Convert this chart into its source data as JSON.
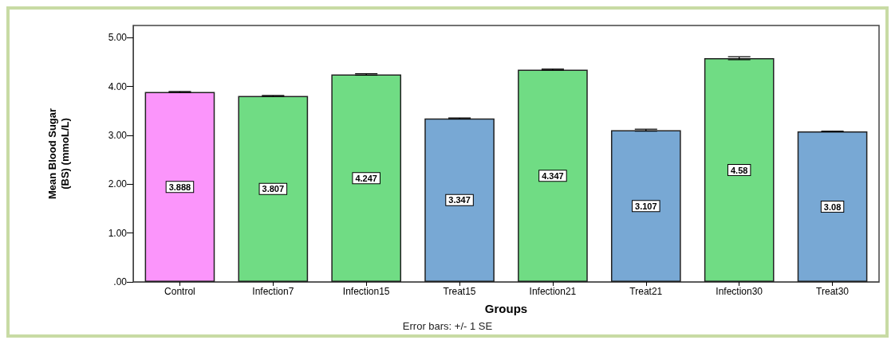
{
  "chart_data": {
    "type": "bar",
    "xlabel": "Groups",
    "ylabel": "Mean Blood Sugar\n(BS) (mmoL/L)",
    "categories": [
      "Control",
      "Infection7",
      "Infection15",
      "Treat15",
      "Infection21",
      "Treat21",
      "Infection30",
      "Treat30"
    ],
    "values": [
      3.888,
      3.807,
      4.247,
      3.347,
      4.347,
      3.107,
      4.58,
      3.08
    ],
    "colors": [
      "#fb95fb",
      "#70dc84",
      "#70dc84",
      "#78a8d4",
      "#70dc84",
      "#78a8d4",
      "#70dc84",
      "#78a8d4"
    ],
    "errors": [
      0.01,
      0.01,
      0.015,
      0.01,
      0.01,
      0.02,
      0.03,
      0.005
    ],
    "ylim": [
      0,
      5.25
    ],
    "yticks": [
      {
        "value": 0,
        "label": ".00"
      },
      {
        "value": 1,
        "label": "1.00"
      },
      {
        "value": 2,
        "label": "2.00"
      },
      {
        "value": 3,
        "label": "3.00"
      },
      {
        "value": 4,
        "label": "4.00"
      },
      {
        "value": 5,
        "label": "5.00"
      }
    ],
    "data_labels": true,
    "grid": false,
    "annotations": [
      "Error bars: +/- 1 SE"
    ]
  }
}
